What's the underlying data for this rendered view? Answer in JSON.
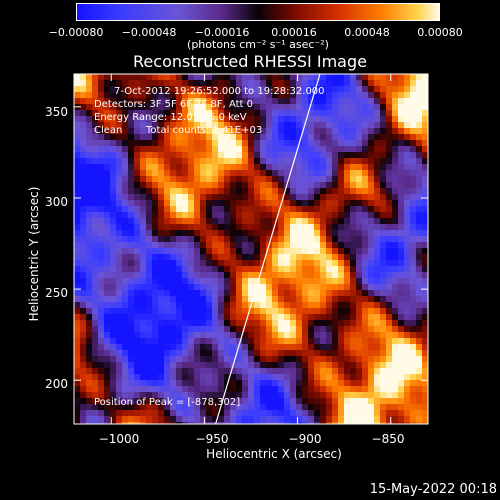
{
  "chart_data": {
    "type": "heatmap",
    "title": "Reconstructed RHESSI Image",
    "xlabel": "Heliocentric X (arcsec)",
    "ylabel": "Heliocentric Y (arcsec)",
    "xlim": [
      -1020,
      -830
    ],
    "ylim": [
      176,
      368
    ],
    "xticks": [
      -1000,
      -950,
      -900,
      -850
    ],
    "xtick_labels": [
      "−1000",
      "−950",
      "−900",
      "−850"
    ],
    "yticks": [
      200,
      250,
      300,
      350
    ],
    "ytick_labels": [
      "200",
      "250",
      "300",
      "350"
    ],
    "colorbar": {
      "ticks": [
        -0.0008,
        -0.00048,
        -0.00016,
        0.00016,
        0.00048,
        0.0008
      ],
      "tick_labels": [
        "−0.00080",
        "−0.00048",
        "−0.00016",
        "0.00016",
        "0.00048",
        "0.00080"
      ],
      "unit": "(photons cm⁻² s⁻¹ asec⁻²)",
      "range": [
        -0.0008,
        0.0008
      ]
    },
    "annotations": [
      "7-Oct-2012 19:26:52.000 to 19:28:32.000",
      "Detectors: 3F 5F 6F 7F 8F, Att 0",
      "Energy Range: 12.0 - 25.0 keV",
      "Clean",
      "Total counts: 1.41E+03"
    ],
    "peak_label": "Position of Peak = [-878,302]",
    "peak_position": [
      -878,
      302
    ],
    "limb_line": [
      [
        -944,
        176
      ],
      [
        -888,
        368
      ]
    ],
    "grid": false,
    "colors": {
      "negative": "#1414ff",
      "zero": "#000000",
      "positive": "#fffbe6"
    }
  },
  "footer": {
    "date": "15-May-2022 00:18"
  }
}
